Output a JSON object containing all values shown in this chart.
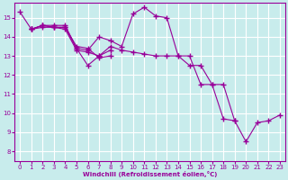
{
  "xlabel": "Windchill (Refroidissement éolien,°C)",
  "bg_color": "#c8ecec",
  "grid_color": "#ffffff",
  "line_color": "#990099",
  "xlim": [
    -0.5,
    23.5
  ],
  "ylim": [
    7.5,
    15.8
  ],
  "xticks": [
    0,
    1,
    2,
    3,
    4,
    5,
    6,
    7,
    8,
    9,
    10,
    11,
    12,
    13,
    14,
    15,
    16,
    17,
    18,
    19,
    20,
    21,
    22,
    23
  ],
  "yticks": [
    8,
    9,
    10,
    11,
    12,
    13,
    14,
    15
  ],
  "lines": [
    {
      "x": [
        0,
        1,
        2,
        3,
        4,
        5,
        6,
        7,
        8
      ],
      "y": [
        15.3,
        14.4,
        14.6,
        14.6,
        14.6,
        13.4,
        12.5,
        13.0,
        13.3
      ]
    },
    {
      "x": [
        1,
        2,
        3,
        4,
        5,
        6,
        7,
        8,
        9,
        10,
        11,
        12,
        13,
        14,
        15,
        16,
        17,
        18,
        19
      ],
      "y": [
        14.4,
        14.6,
        14.5,
        14.5,
        13.4,
        13.3,
        14.0,
        13.8,
        13.5,
        15.2,
        15.55,
        15.1,
        15.0,
        13.0,
        13.0,
        11.5,
        11.5,
        9.7,
        9.6
      ]
    },
    {
      "x": [
        1,
        2,
        3,
        4,
        5,
        6,
        7,
        8
      ],
      "y": [
        14.4,
        14.6,
        14.5,
        14.5,
        13.5,
        13.4,
        12.9,
        13.0
      ]
    },
    {
      "x": [
        1,
        2,
        3,
        4,
        5,
        6,
        7,
        8,
        9,
        10,
        11,
        12,
        13,
        14,
        15,
        16,
        17,
        18,
        19,
        20,
        21,
        22,
        23
      ],
      "y": [
        14.4,
        14.5,
        14.5,
        14.4,
        13.3,
        13.2,
        13.0,
        13.5,
        13.3,
        13.2,
        13.1,
        13.0,
        13.0,
        13.0,
        12.5,
        12.5,
        11.5,
        11.5,
        9.6,
        8.5,
        9.5,
        9.6,
        9.9
      ]
    }
  ]
}
